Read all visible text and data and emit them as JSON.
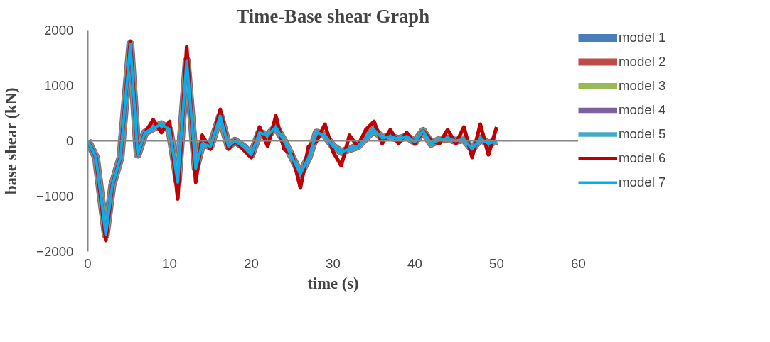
{
  "chart_data": {
    "type": "line",
    "title": "Time-Base shear Graph",
    "xlabel": "time (s)",
    "ylabel": "base shear (kN)",
    "x": [
      0,
      1,
      2.2,
      3,
      4,
      5.2,
      6.1,
      7,
      8,
      9,
      10,
      11,
      12.1,
      13.2,
      14,
      15,
      16.2,
      17.2,
      18,
      19,
      20,
      21,
      22,
      23,
      24,
      25,
      26,
      27,
      28,
      29,
      30,
      31,
      32,
      33,
      34,
      35,
      36,
      37,
      38,
      39,
      40,
      41,
      42,
      43,
      44,
      45,
      46,
      47,
      48,
      49,
      50
    ],
    "xlim": [
      0,
      60
    ],
    "xticks": [
      0,
      10,
      20,
      30,
      40,
      50,
      60
    ],
    "ylim": [
      -2000,
      2000
    ],
    "yticks": [
      -2000,
      -1000,
      0,
      1000,
      2000
    ],
    "legend": "right",
    "line_style": "solid",
    "marker": "none",
    "series": [
      {
        "name": "model 1",
        "color": "#4a7ebb",
        "values": [
          0,
          -300,
          -1700,
          -800,
          -300,
          1750,
          -250,
          150,
          230,
          300,
          200,
          -750,
          1450,
          -500,
          -50,
          -100,
          450,
          -100,
          0,
          -100,
          -250,
          150,
          100,
          250,
          0,
          -300,
          -600,
          -300,
          150,
          100,
          -100,
          -200,
          -150,
          -100,
          50,
          200,
          50,
          80,
          30,
          80,
          -20,
          180,
          -50,
          20,
          40,
          0,
          30,
          -150,
          40,
          -50,
          0
        ]
      },
      {
        "name": "model 2",
        "color": "#be4b48",
        "values": [
          0,
          -300,
          -1700,
          -800,
          -300,
          1750,
          -250,
          150,
          230,
          300,
          200,
          -750,
          1450,
          -500,
          -50,
          -100,
          450,
          -100,
          0,
          -100,
          -250,
          150,
          100,
          250,
          0,
          -300,
          -600,
          -300,
          150,
          100,
          -100,
          -200,
          -150,
          -100,
          50,
          200,
          50,
          80,
          30,
          80,
          -20,
          180,
          -50,
          20,
          40,
          0,
          30,
          -150,
          40,
          -50,
          0
        ]
      },
      {
        "name": "model 3",
        "color": "#98b954",
        "values": [
          0,
          -300,
          -1700,
          -800,
          -300,
          1750,
          -250,
          150,
          230,
          300,
          200,
          -750,
          1450,
          -500,
          -50,
          -100,
          450,
          -100,
          0,
          -100,
          -250,
          150,
          100,
          250,
          0,
          -300,
          -600,
          -300,
          150,
          100,
          -100,
          -200,
          -150,
          -100,
          50,
          200,
          50,
          80,
          30,
          80,
          -20,
          180,
          -50,
          20,
          40,
          0,
          30,
          -150,
          40,
          -50,
          0
        ]
      },
      {
        "name": "model 4",
        "color": "#7d60a0",
        "values": [
          0,
          -300,
          -1700,
          -800,
          -300,
          1750,
          -250,
          150,
          230,
          300,
          200,
          -750,
          1450,
          -500,
          -50,
          -100,
          450,
          -100,
          0,
          -100,
          -250,
          150,
          100,
          250,
          0,
          -300,
          -600,
          -300,
          150,
          100,
          -100,
          -200,
          -150,
          -100,
          50,
          200,
          50,
          80,
          30,
          80,
          -20,
          180,
          -50,
          20,
          40,
          0,
          30,
          -150,
          40,
          -50,
          0
        ]
      },
      {
        "name": "model 5",
        "color": "#46aac5",
        "values": [
          0,
          -300,
          -1700,
          -800,
          -300,
          1750,
          -250,
          150,
          230,
          300,
          200,
          -750,
          1450,
          -500,
          -50,
          -100,
          450,
          -100,
          0,
          -100,
          -250,
          150,
          100,
          250,
          0,
          -300,
          -600,
          -300,
          150,
          100,
          -100,
          -200,
          -150,
          -100,
          50,
          200,
          50,
          80,
          30,
          80,
          -20,
          180,
          -50,
          20,
          40,
          0,
          30,
          -150,
          40,
          -50,
          0
        ]
      },
      {
        "name": "model 6",
        "color": "#c00000",
        "values": [
          0,
          -300,
          -1800,
          -800,
          -300,
          1800,
          -250,
          150,
          380,
          150,
          350,
          -1050,
          1700,
          -750,
          100,
          -150,
          570,
          -150,
          0,
          -150,
          -300,
          250,
          -100,
          450,
          -150,
          -250,
          -850,
          -100,
          0,
          300,
          -200,
          -450,
          100,
          -100,
          200,
          350,
          -50,
          200,
          -50,
          150,
          -50,
          180,
          0,
          -50,
          200,
          -50,
          250,
          -300,
          300,
          -250,
          250
        ]
      },
      {
        "name": "model 7",
        "color": "#00b0f0",
        "values": [
          0,
          -300,
          -1700,
          -800,
          -300,
          1750,
          -250,
          150,
          230,
          300,
          200,
          -750,
          1450,
          -500,
          -50,
          -100,
          450,
          -100,
          0,
          -100,
          -250,
          150,
          100,
          250,
          0,
          -300,
          -600,
          -300,
          150,
          100,
          -100,
          -200,
          -150,
          -100,
          50,
          200,
          50,
          80,
          30,
          80,
          -20,
          180,
          -50,
          20,
          40,
          0,
          30,
          -150,
          40,
          -50,
          0
        ]
      }
    ]
  }
}
